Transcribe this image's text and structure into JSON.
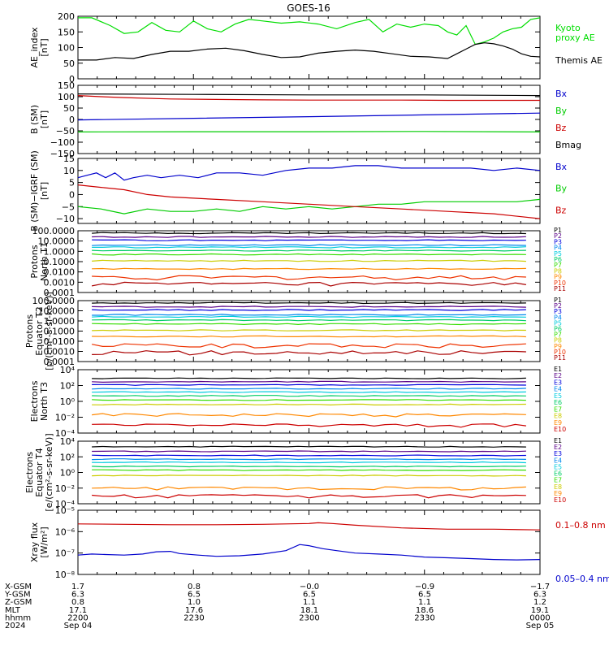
{
  "title": "GOES-16",
  "chart_data": [
    {
      "type": "line",
      "ylabel": "AE_index\n[nT]",
      "yticks": [
        "200",
        "150",
        "100",
        "50",
        "0"
      ],
      "ylim": [
        0,
        200
      ],
      "ytick_values": [
        200,
        150,
        100,
        50,
        0
      ],
      "legend_position": "right",
      "series": [
        {
          "name": "Kyoto\nproxy AE",
          "color": "#00dd00",
          "x": [
            0,
            0.03,
            0.07,
            0.1,
            0.13,
            0.16,
            0.19,
            0.22,
            0.25,
            0.28,
            0.31,
            0.34,
            0.37,
            0.4,
            0.44,
            0.48,
            0.52,
            0.56,
            0.6,
            0.63,
            0.66,
            0.69,
            0.72,
            0.75,
            0.78,
            0.8,
            0.82,
            0.84,
            0.86,
            0.88,
            0.9,
            0.92,
            0.94,
            0.96,
            0.98,
            1.0
          ],
          "y": [
            195,
            195,
            170,
            145,
            150,
            180,
            155,
            150,
            185,
            160,
            150,
            175,
            190,
            185,
            178,
            182,
            175,
            160,
            180,
            190,
            150,
            175,
            165,
            175,
            170,
            150,
            140,
            170,
            110,
            118,
            130,
            150,
            160,
            165,
            190,
            195
          ]
        },
        {
          "name": "Themis AE",
          "color": "#000000",
          "x": [
            0,
            0.04,
            0.08,
            0.12,
            0.16,
            0.2,
            0.24,
            0.28,
            0.32,
            0.36,
            0.4,
            0.44,
            0.48,
            0.52,
            0.56,
            0.6,
            0.64,
            0.68,
            0.72,
            0.76,
            0.8,
            0.82,
            0.84,
            0.86,
            0.88,
            0.9,
            0.92,
            0.94,
            0.96,
            0.98,
            1.0
          ],
          "y": [
            60,
            60,
            68,
            65,
            78,
            88,
            88,
            95,
            98,
            90,
            78,
            68,
            70,
            82,
            88,
            92,
            88,
            80,
            72,
            70,
            65,
            80,
            95,
            110,
            115,
            112,
            105,
            95,
            80,
            72,
            70
          ]
        }
      ]
    },
    {
      "type": "line",
      "ylabel": "B (SM)\n[nT]",
      "yticks": [
        "150",
        "100",
        "50",
        "0",
        "−50",
        "−100",
        "−150"
      ],
      "ytick_values": [
        150,
        100,
        50,
        0,
        -50,
        -100,
        -150
      ],
      "ylim": [
        -150,
        150
      ],
      "legend_position": "right",
      "series": [
        {
          "name": "Bx",
          "color": "#0000cc",
          "x": [
            0,
            0.25,
            0.5,
            0.75,
            1.0
          ],
          "y": [
            -2,
            5,
            12,
            20,
            28
          ]
        },
        {
          "name": "By",
          "color": "#00cc00",
          "x": [
            0,
            0.25,
            0.5,
            0.75,
            1.0
          ],
          "y": [
            -55,
            -54,
            -54,
            -53,
            -55
          ]
        },
        {
          "name": "Bz",
          "color": "#cc0000",
          "x": [
            0,
            0.05,
            0.1,
            0.2,
            0.3,
            0.4,
            0.5,
            0.6,
            0.7,
            0.8,
            0.9,
            1.0
          ],
          "y": [
            105,
            100,
            96,
            90,
            88,
            86,
            85,
            85,
            85,
            84,
            84,
            84
          ]
        },
        {
          "name": "Bmag",
          "color": "#000000",
          "x": [
            0,
            0.25,
            0.5,
            0.75,
            1.0
          ],
          "y": [
            112,
            110,
            108,
            108,
            105
          ]
        }
      ]
    },
    {
      "type": "line",
      "ylabel": "B (SM)−IGRF (SM)\n[nT]",
      "yticks": [
        "15",
        "10",
        "5",
        "0",
        "−5",
        "−10"
      ],
      "ytick_values": [
        15,
        10,
        5,
        0,
        -5,
        -10
      ],
      "ylim": [
        -12,
        15
      ],
      "legend_position": "right",
      "series": [
        {
          "name": "Bx",
          "color": "#0000cc",
          "x": [
            0,
            0.02,
            0.04,
            0.06,
            0.08,
            0.1,
            0.12,
            0.15,
            0.18,
            0.22,
            0.26,
            0.3,
            0.35,
            0.4,
            0.45,
            0.5,
            0.55,
            0.6,
            0.65,
            0.7,
            0.75,
            0.8,
            0.85,
            0.9,
            0.95,
            1.0
          ],
          "y": [
            7,
            8,
            9,
            7,
            9,
            6,
            7,
            8,
            7,
            8,
            7,
            9,
            9,
            8,
            10,
            11,
            11,
            12,
            12,
            11,
            11,
            11,
            11,
            10,
            11,
            10
          ]
        },
        {
          "name": "By",
          "color": "#00cc00",
          "x": [
            0,
            0.05,
            0.1,
            0.15,
            0.2,
            0.25,
            0.3,
            0.35,
            0.4,
            0.45,
            0.5,
            0.55,
            0.6,
            0.65,
            0.7,
            0.75,
            0.8,
            0.85,
            0.9,
            0.95,
            1.0
          ],
          "y": [
            -5,
            -6,
            -8,
            -6,
            -7,
            -7,
            -6,
            -7,
            -5,
            -6,
            -5,
            -6,
            -5,
            -4,
            -4,
            -3,
            -3,
            -3,
            -3,
            -3,
            -2
          ]
        },
        {
          "name": "Bz",
          "color": "#cc0000",
          "x": [
            0,
            0.05,
            0.1,
            0.15,
            0.2,
            0.3,
            0.4,
            0.5,
            0.6,
            0.7,
            0.8,
            0.9,
            1.0
          ],
          "y": [
            4,
            3,
            2,
            0,
            -1,
            -2,
            -3,
            -4,
            -5,
            -6,
            -7,
            -8,
            -10
          ]
        }
      ]
    },
    {
      "type": "line",
      "log": true,
      "ylabel": "Protons\nNorth T1",
      "yticks": [
        "100.0000",
        "10.0000",
        "1.0000",
        "0.1000",
        "0.0100",
        "0.0010",
        "0.0001"
      ],
      "ytick_values": [
        100,
        10,
        1,
        0.1,
        0.01,
        0.001,
        0.0001
      ],
      "ylim": [
        0.0001,
        100
      ],
      "legend_position": "right",
      "channels": [
        "P1",
        "P2",
        "P3",
        "P4",
        "P5",
        "P6",
        "P7",
        "P8",
        "P9",
        "P10",
        "P11"
      ],
      "levels": [
        60,
        25,
        12,
        4,
        2.5,
        1.2,
        0.5,
        0.12,
        0.02,
        0.003,
        0.0007
      ],
      "colors": [
        "#000000",
        "#5a0088",
        "#0000dd",
        "#0088ee",
        "#00ccdd",
        "#00cc66",
        "#33dd00",
        "#cccc00",
        "#ff8800",
        "#ee3300",
        "#aa0000"
      ]
    },
    {
      "type": "line",
      "log": true,
      "ylabel": "Protons\nEquator T2\n[p/(cm²-s-sr-keV)]",
      "yticks": [
        "100.0000",
        "10.0000",
        "1.0000",
        "0.1000",
        "0.0100",
        "0.0010",
        "0.0001"
      ],
      "ytick_values": [
        100,
        10,
        1,
        0.1,
        0.01,
        0.001,
        0.0001
      ],
      "ylim": [
        0.0001,
        100
      ],
      "legend_position": "right",
      "channels": [
        "P1",
        "P2",
        "P3",
        "P4",
        "P5",
        "P6",
        "P7",
        "P8",
        "P9",
        "P10",
        "P11"
      ],
      "levels": [
        60,
        25,
        12,
        4,
        2.5,
        1.2,
        0.5,
        0.12,
        0.03,
        0.004,
        0.0008
      ],
      "colors": [
        "#000000",
        "#5a0088",
        "#0000dd",
        "#0088ee",
        "#00ccdd",
        "#00cc66",
        "#33dd00",
        "#cccc00",
        "#ff8800",
        "#ee3300",
        "#aa0000"
      ]
    },
    {
      "type": "line",
      "log": true,
      "ylabel": "Electrons\nNorth T3",
      "yticks": [
        "10⁴",
        "10²",
        "10⁰",
        "10⁻²",
        "10⁻⁴"
      ],
      "ytick_values": [
        10000,
        100,
        1,
        0.01,
        0.0001
      ],
      "ylim": [
        0.0001,
        10000
      ],
      "legend_position": "right",
      "channels": [
        "E1",
        "E2",
        "E3",
        "E4",
        "E5",
        "E6",
        "E7",
        "E8",
        "E9",
        "E10"
      ],
      "levels": [
        800,
        300,
        120,
        40,
        15,
        5,
        1.5,
        0.4,
        0.02,
        0.001
      ],
      "colors": [
        "#000000",
        "#5a0088",
        "#0000dd",
        "#0088ee",
        "#00ccdd",
        "#00cc66",
        "#33dd00",
        "#cccc00",
        "#ff8800",
        "#cc0000"
      ]
    },
    {
      "type": "line",
      "log": true,
      "ylabel": "Electrons\nEquator T4\n[e/(cm²-s-sr-keV)]",
      "yticks": [
        "10⁴",
        "10²",
        "10⁰",
        "10⁻²",
        "10⁻⁴"
      ],
      "ytick_values": [
        10000,
        100,
        1,
        0.01,
        0.0001
      ],
      "ylim": [
        0.0001,
        10000
      ],
      "legend_position": "right",
      "channels": [
        "E1",
        "E2",
        "E3",
        "E4",
        "E5",
        "E6",
        "E7",
        "E8",
        "E9",
        "E10"
      ],
      "levels": [
        2000,
        500,
        150,
        50,
        20,
        6,
        2,
        0.4,
        0.01,
        0.001
      ],
      "colors": [
        "#000000",
        "#5a0088",
        "#0000dd",
        "#0088ee",
        "#00ccdd",
        "#00cc66",
        "#33dd00",
        "#cccc00",
        "#ff8800",
        "#cc0000"
      ]
    },
    {
      "type": "line",
      "log": true,
      "ylabel": "Xray flux\n[W/m²]",
      "yticks": [
        "10⁻⁵",
        "10⁻⁶",
        "10⁻⁷",
        "10⁻⁸"
      ],
      "ytick_values": [
        1e-05,
        1e-06,
        1e-07,
        1e-08
      ],
      "ylim": [
        1e-08,
        1e-05
      ],
      "legend_position": "right",
      "series": [
        {
          "name": "0.1–0.8 nm",
          "color": "#cc0000",
          "x": [
            0,
            0.1,
            0.2,
            0.3,
            0.4,
            0.5,
            0.52,
            0.55,
            0.6,
            0.7,
            0.8,
            0.9,
            1.0
          ],
          "y": [
            2.3e-06,
            2.2e-06,
            2.1e-06,
            2.1e-06,
            2.2e-06,
            2.4e-06,
            2.6e-06,
            2.4e-06,
            2e-06,
            1.5e-06,
            1.3e-06,
            1.3e-06,
            1.2e-06
          ]
        },
        {
          "name": "0.05–0.4 nm",
          "color": "#0000cc",
          "x": [
            0,
            0.03,
            0.06,
            0.1,
            0.14,
            0.17,
            0.2,
            0.22,
            0.26,
            0.3,
            0.35,
            0.4,
            0.45,
            0.48,
            0.5,
            0.53,
            0.56,
            0.6,
            0.65,
            0.7,
            0.75,
            0.8,
            0.85,
            0.9,
            0.95,
            1.0
          ],
          "y": [
            8e-08,
            9e-08,
            8.5e-08,
            8e-08,
            9e-08,
            1.15e-07,
            1.2e-07,
            9.5e-08,
            8e-08,
            7e-08,
            7.5e-08,
            9e-08,
            1.3e-07,
            2.5e-07,
            2.2e-07,
            1.6e-07,
            1.3e-07,
            1e-07,
            9e-08,
            8e-08,
            6.5e-08,
            6e-08,
            5.5e-08,
            5e-08,
            4.8e-08,
            5e-08
          ]
        }
      ]
    }
  ],
  "footer": {
    "rows": [
      {
        "label": "X-GSM",
        "values": [
          "1.7",
          "0.8",
          "−0.0",
          "−0.9",
          "−1.7"
        ]
      },
      {
        "label": "Y-GSM",
        "values": [
          "6.3",
          "6.5",
          "6.5",
          "6.5",
          "6.3"
        ]
      },
      {
        "label": "Z-GSM",
        "values": [
          "0.8",
          "1.0",
          "1.1",
          "1.1",
          "1.2"
        ]
      },
      {
        "label": "MLT",
        "values": [
          "17.1",
          "17.6",
          "18.1",
          "18.6",
          "19.1"
        ]
      },
      {
        "label": "hhmm",
        "values": [
          "2200",
          "2230",
          "2300",
          "2330",
          "0000"
        ]
      },
      {
        "label": "2024",
        "values": [
          "Sep 04",
          "",
          "",
          "",
          "Sep 05"
        ]
      }
    ]
  }
}
